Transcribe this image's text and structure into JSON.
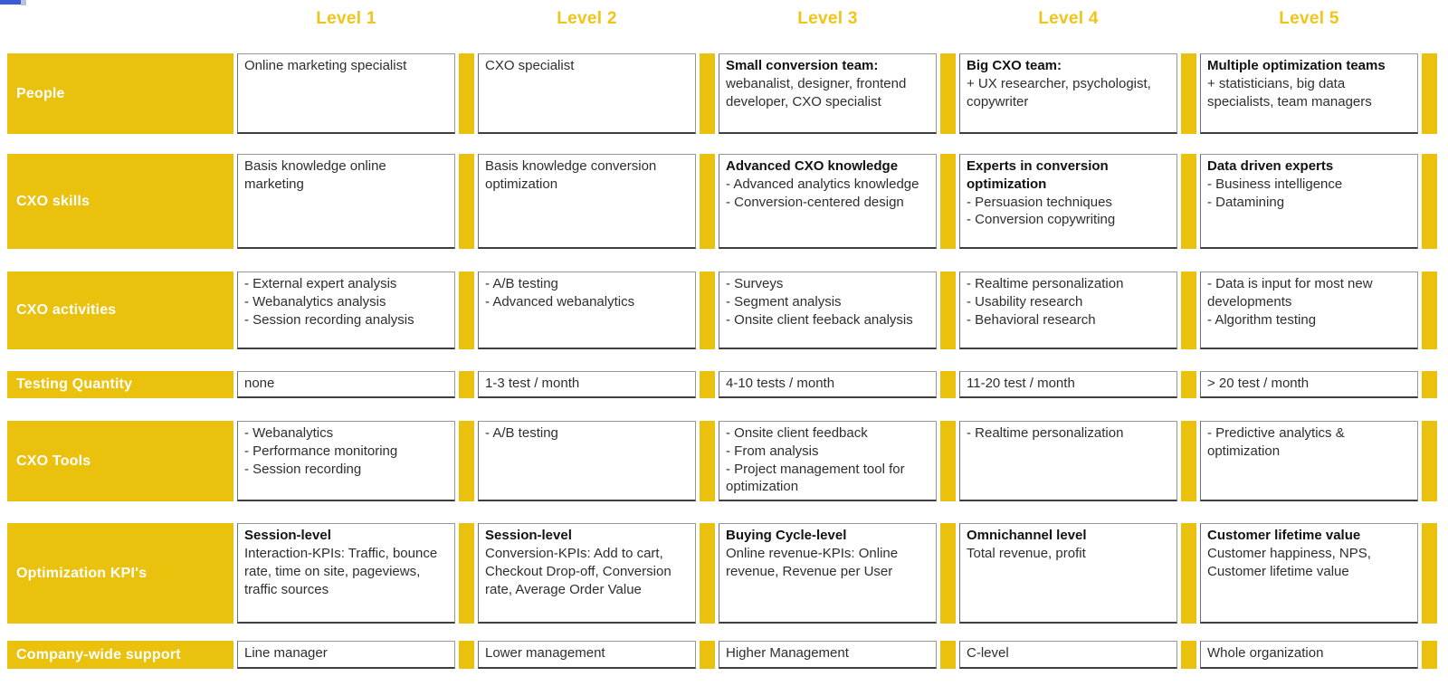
{
  "colors": {
    "accent_yellow": "#EAC10D",
    "header_text_yellow": "#F0C419",
    "artifact_blue": "#3B5BDB",
    "cell_text": "#2E2E2E",
    "row_label_text": "#FFFFFF"
  },
  "columns": [
    {
      "label": "Level 1"
    },
    {
      "label": "Level 2"
    },
    {
      "label": "Level 3"
    },
    {
      "label": "Level 4"
    },
    {
      "label": "Level 5"
    }
  ],
  "rows": [
    {
      "label": "People",
      "cells": [
        {
          "title": "",
          "body": "Online marketing specialist"
        },
        {
          "title": "",
          "body": "CXO specialist"
        },
        {
          "title": "Small conversion team:",
          "body": "webanalist, designer, frontend developer, CXO specialist"
        },
        {
          "title": "Big CXO team:",
          "body": "+ UX researcher, psychologist, copywriter"
        },
        {
          "title": "Multiple optimization teams",
          "body": "+ statisticians, big data specialists, team managers"
        }
      ]
    },
    {
      "label": "CXO skills",
      "cells": [
        {
          "title": "",
          "body": "Basis knowledge online marketing"
        },
        {
          "title": "",
          "body": "Basis knowledge conversion optimization"
        },
        {
          "title": "Advanced CXO knowledge",
          "body": "- Advanced analytics knowledge\n- Conversion-centered design"
        },
        {
          "title": "Experts in conversion optimization",
          "body": "- Persuasion techniques\n- Conversion copywriting"
        },
        {
          "title": "Data driven experts",
          "body": "- Business intelligence\n- Datamining"
        }
      ]
    },
    {
      "label": "CXO activities",
      "cells": [
        {
          "title": "",
          "body": "- External expert analysis\n- Webanalytics analysis\n- Session recording analysis"
        },
        {
          "title": "",
          "body": "- A/B testing\n- Advanced webanalytics"
        },
        {
          "title": "",
          "body": "- Surveys\n- Segment analysis\n- Onsite client feeback analysis"
        },
        {
          "title": "",
          "body": "- Realtime personalization\n- Usability research\n- Behavioral research"
        },
        {
          "title": "",
          "body": "- Data is input for most new developments\n- Algorithm testing"
        }
      ]
    },
    {
      "label": "Testing Quantity",
      "cells": [
        {
          "title": "",
          "body": "none"
        },
        {
          "title": "",
          "body": "1-3 test / month"
        },
        {
          "title": "",
          "body": "4-10 tests / month"
        },
        {
          "title": "",
          "body": "11-20 test / month"
        },
        {
          "title": "",
          "body": "> 20 test / month"
        }
      ]
    },
    {
      "label": "CXO Tools",
      "cells": [
        {
          "title": "",
          "body": "- Webanalytics\n- Performance monitoring\n- Session recording"
        },
        {
          "title": "",
          "body": "- A/B testing"
        },
        {
          "title": "",
          "body": "- Onsite client feedback\n- From analysis\n- Project management tool for optimization"
        },
        {
          "title": "",
          "body": "- Realtime personalization"
        },
        {
          "title": "",
          "body": "- Predictive analytics & optimization"
        }
      ]
    },
    {
      "label": "Optimization KPI's",
      "cells": [
        {
          "title": "Session-level",
          "body": "Interaction-KPIs: Traffic, bounce rate, time on site, pageviews, traffic sources"
        },
        {
          "title": "Session-level",
          "body": "Conversion-KPIs: Add to cart, Checkout Drop-off, Conversion rate, Average Order Value"
        },
        {
          "title": "Buying Cycle-level",
          "body": "Online revenue-KPIs: Online revenue, Revenue per User"
        },
        {
          "title": "Omnichannel level",
          "body": "Total revenue, profit"
        },
        {
          "title": "Customer lifetime value",
          "body": "Customer happiness, NPS, Customer lifetime value"
        }
      ]
    },
    {
      "label": "Company-wide support",
      "cells": [
        {
          "title": "",
          "body": "Line manager"
        },
        {
          "title": "",
          "body": "Lower management"
        },
        {
          "title": "",
          "body": "Higher Management"
        },
        {
          "title": "",
          "body": "C-level"
        },
        {
          "title": "",
          "body": "Whole organization"
        }
      ]
    }
  ]
}
